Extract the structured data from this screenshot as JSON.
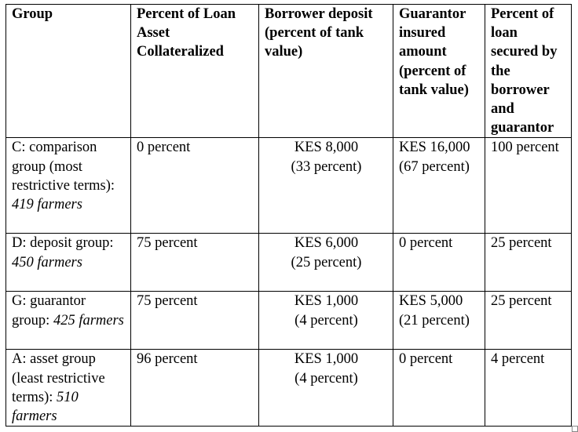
{
  "headers": [
    "Group",
    "Percent of Loan Asset Collateralized",
    "Borrower deposit (percent of tank value)",
    "Guarantor insured amount (percent of tank value)",
    "Percent of loan secured by the borrower and guarantor"
  ],
  "rows": [
    {
      "group_label": "C: comparison group (most restrictive terms):",
      "group_count": "419 farmers",
      "collateralized": "0 percent",
      "deposit_amount": "KES 8,000",
      "deposit_percent": "(33 percent)",
      "guarantor": "KES 16,000 (67 percent)",
      "secured": "100 percent"
    },
    {
      "group_label": "D: deposit group:",
      "group_count": "450 farmers",
      "collateralized": "75 percent",
      "deposit_amount": "KES 6,000",
      "deposit_percent": "(25 percent)",
      "guarantor": "0 percent",
      "secured": "25 percent"
    },
    {
      "group_label": "G: guarantor group:",
      "group_count": "425 farmers",
      "collateralized": "75 percent",
      "deposit_amount": "KES 1,000",
      "deposit_percent": "(4 percent)",
      "guarantor": "KES 5,000 (21 percent)",
      "secured": "25 percent"
    },
    {
      "group_label": "A: asset group (least restrictive terms):",
      "group_count": "510 farmers",
      "collateralized": "96 percent",
      "deposit_amount": "KES 1,000",
      "deposit_percent": "(4 percent)",
      "guarantor": "0 percent",
      "secured": "4 percent"
    }
  ]
}
